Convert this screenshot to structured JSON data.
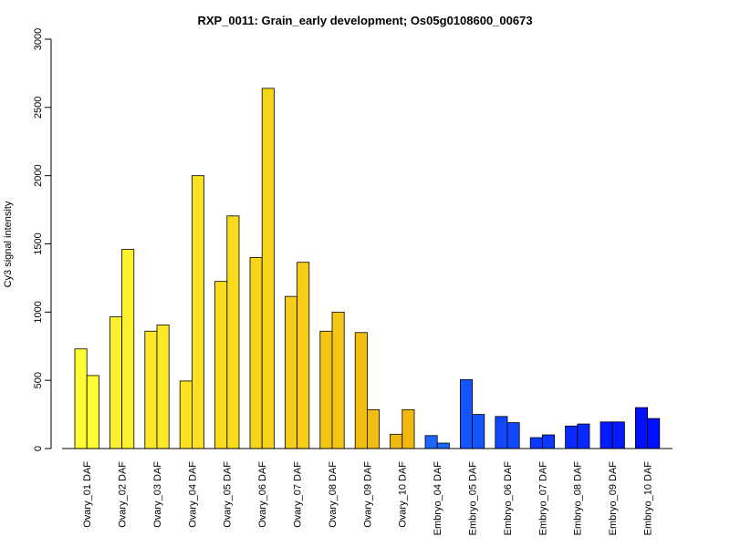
{
  "chart_data": {
    "type": "bar",
    "title": "RXP_0011: Grain_early development; Os05g0108600_00673",
    "xlabel": "",
    "ylabel": "Cy3 signal intensity",
    "ylim": [
      0,
      3000
    ],
    "yticks": [
      0,
      500,
      1000,
      1500,
      2000,
      2500,
      3000
    ],
    "grid": false,
    "categories": [
      "Ovary_01 DAF",
      "Ovary_02 DAF",
      "Ovary_03 DAF",
      "Ovary_04 DAF",
      "Ovary_05 DAF",
      "Ovary_06 DAF",
      "Ovary_07 DAF",
      "Ovary_08 DAF",
      "Ovary_09 DAF",
      "Ovary_10 DAF",
      "Embryo_04 DAF",
      "Embryo_05 DAF",
      "Embryo_06 DAF",
      "Embryo_07 DAF",
      "Embryo_08 DAF",
      "Embryo_09 DAF",
      "Embryo_10 DAF"
    ],
    "series": [
      {
        "values": [
          730,
          965,
          860,
          495,
          1225,
          1400,
          1115,
          860,
          850,
          105,
          95,
          505,
          235,
          80,
          165,
          195,
          300
        ]
      },
      {
        "values": [
          535,
          1460,
          905,
          2000,
          1705,
          2640,
          1365,
          1000,
          285,
          285,
          40,
          250,
          190,
          100,
          180,
          195,
          220
        ]
      }
    ],
    "colors": [
      "#ffff33",
      "#fdf02c",
      "#fbe826",
      "#fbe122",
      "#f9db1e",
      "#f8d41a",
      "#f7cd17",
      "#f5c514",
      "#f3be11",
      "#f0b70e",
      "#1a66ff",
      "#1455ff",
      "#1048ff",
      "#0c38ff",
      "#0829ff",
      "#041aff",
      "#000fff"
    ]
  }
}
